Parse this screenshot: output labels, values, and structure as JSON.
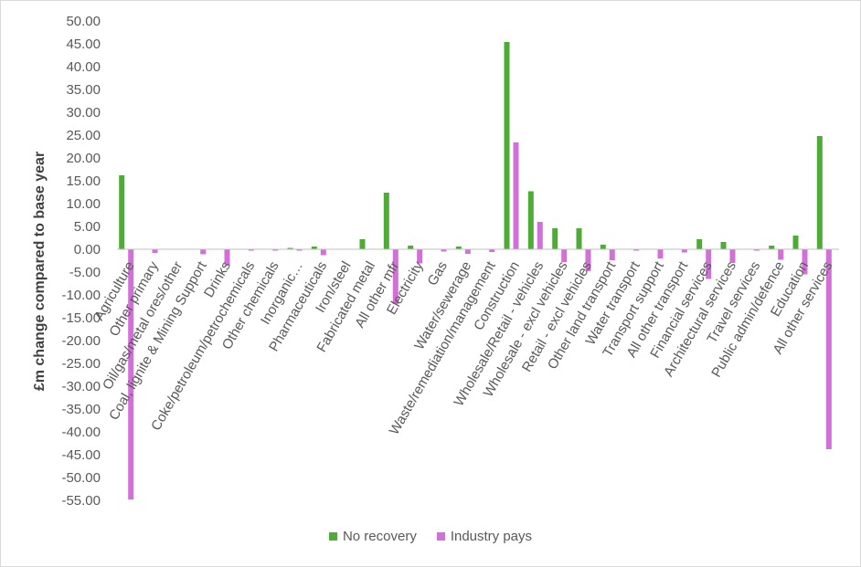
{
  "chart_data": {
    "type": "bar",
    "ylabel": "£m change compared to base year",
    "ylim": [
      -55,
      50
    ],
    "ytick_step": 5,
    "ytick_labels": [
      "50.00",
      "45.00",
      "40.00",
      "35.00",
      "30.00",
      "25.00",
      "20.00",
      "15.00",
      "10.00",
      "5.00",
      "0.00",
      "-5.00",
      "-10.00",
      "-15.00",
      "-20.00",
      "-25.00",
      "-30.00",
      "-35.00",
      "-40.00",
      "-45.00",
      "-50.00",
      "-55.00"
    ],
    "legend_position": "bottom",
    "categories": [
      "Agriculture",
      "Other primary",
      "Oil/gas/metal ores/other",
      "Coal, lignite & Mining Support",
      "Drinks",
      "Coke/petroleum/petrochemicals",
      "Other chemicals",
      "Inorganic…",
      "Pharmaceuticals",
      "Iron/steel",
      "Fabricated metal",
      "All other mfr",
      "Electricity",
      "Gas",
      "Water/sewerage",
      "Waste/remediation/management",
      "Construction",
      "Wholesale/Retail - vehicles",
      "Wholesale - excl vehicles",
      "Retail - excl vehicles",
      "Other land transport",
      "Water transport",
      "Transport support",
      "All other transport",
      "Financial services",
      "Architectural services",
      "Travel services",
      "Public admin/defence",
      "Education",
      "All other services"
    ],
    "series": [
      {
        "name": "No recovery",
        "color": "#4eab35",
        "values": [
          16.2,
          0,
          0,
          0,
          0,
          0,
          0,
          0.3,
          0.6,
          0,
          2.2,
          12.4,
          0.8,
          0,
          0.6,
          0,
          45.4,
          12.7,
          4.6,
          4.6,
          1.0,
          0,
          0,
          0,
          2.2,
          1.6,
          0,
          0.8,
          3.0,
          24.8
        ]
      },
      {
        "name": "Industry pays",
        "color": "#d36fd8",
        "values": [
          -54.8,
          -0.8,
          0,
          -1.1,
          -3.5,
          -0.3,
          -0.3,
          -0.3,
          -1.3,
          0,
          0,
          -12.0,
          -3.1,
          -0.5,
          -1.0,
          -0.6,
          23.4,
          6.0,
          -2.8,
          -4.8,
          -2.4,
          -0.3,
          -2.0,
          -0.7,
          -6.5,
          -3.0,
          -0.3,
          -2.3,
          -5.5,
          -43.8
        ]
      }
    ]
  }
}
